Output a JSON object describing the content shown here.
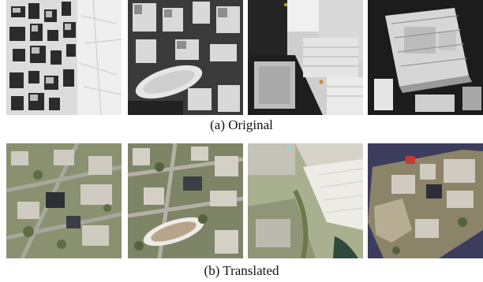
{
  "captions": {
    "original": "(a) Original",
    "translated": "(b) Translated"
  },
  "rows": [
    {
      "name": "original",
      "tiles": [
        {
          "kind": "dense-city-grayscale"
        },
        {
          "kind": "city-oval-plaza-grayscale"
        },
        {
          "kind": "rooftop-closeup-grayscale"
        },
        {
          "kind": "large-building-grayscale"
        }
      ]
    },
    {
      "name": "translated",
      "tiles": [
        {
          "kind": "aerial-town-color"
        },
        {
          "kind": "aerial-city-oval-color"
        },
        {
          "kind": "aerial-riverside-color"
        },
        {
          "kind": "aerial-lakeside-color"
        }
      ]
    }
  ],
  "colors": {
    "gray_light": "#e2e2e2",
    "gray_dark": "#2a2a2a",
    "aerial_green": "#7c8a5c",
    "aerial_roof": "#c9c6bd",
    "water": "#3a3a5a"
  }
}
